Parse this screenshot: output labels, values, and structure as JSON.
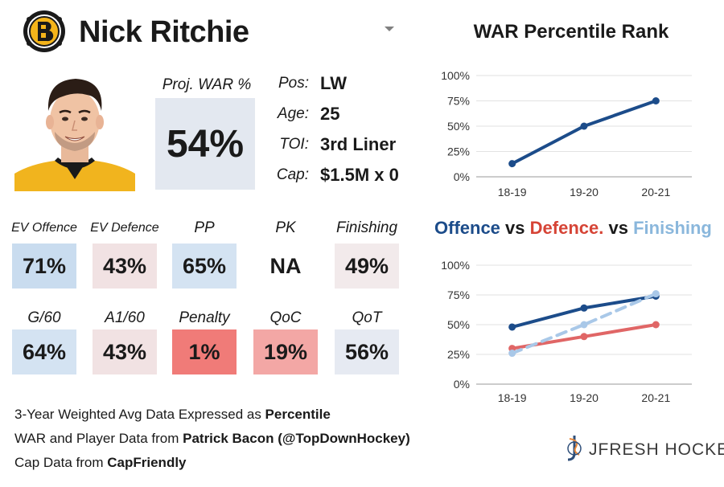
{
  "header": {
    "player_name": "Nick Ritchie",
    "team_logo_icon": "bruins-logo-icon",
    "dropdown_icon": "chevron-down-icon"
  },
  "projected_war": {
    "label": "Proj. WAR %",
    "value": "54%"
  },
  "bio": [
    {
      "label": "Pos:",
      "value": "LW"
    },
    {
      "label": "Age:",
      "value": "25"
    },
    {
      "label": "TOI:",
      "value": "3rd Liner"
    },
    {
      "label": "Cap:",
      "value": "$1.5M x 0"
    }
  ],
  "stats_row1": [
    {
      "label": "EV Offence",
      "value": "71%",
      "color": "#c9dcef"
    },
    {
      "label": "EV Defence",
      "value": "43%",
      "color": "#f1e2e3"
    },
    {
      "label": "PP",
      "value": "65%",
      "color": "#d4e3f2"
    },
    {
      "label": "PK",
      "value": "NA",
      "color": "#ffffff"
    },
    {
      "label": "Finishing",
      "value": "49%",
      "color": "#f2eaeb"
    }
  ],
  "stats_row2": [
    {
      "label": "G/60",
      "value": "64%",
      "color": "#d4e3f2"
    },
    {
      "label": "A1/60",
      "value": "43%",
      "color": "#f1e2e3"
    },
    {
      "label": "Penalty",
      "value": "1%",
      "color": "#f07b78"
    },
    {
      "label": "QoC",
      "value": "19%",
      "color": "#f3a7a5"
    },
    {
      "label": "QoT",
      "value": "56%",
      "color": "#e6eaf2"
    }
  ],
  "chart_data": [
    {
      "type": "line",
      "title": "WAR Percentile Rank",
      "categories": [
        "18-19",
        "19-20",
        "20-21"
      ],
      "ylim": [
        0,
        100
      ],
      "yticks": [
        "0%",
        "25%",
        "50%",
        "75%",
        "100%"
      ],
      "series": [
        {
          "name": "WAR",
          "values": [
            13,
            50,
            75
          ],
          "color": "#1c4c8a"
        }
      ]
    },
    {
      "type": "line",
      "title": "Offence vs Defence. vs Finishing",
      "title_parts": {
        "offence": "Offence",
        "vs1": "vs",
        "defence": "Defence.",
        "vs2": "vs",
        "finishing": "Finishing"
      },
      "categories": [
        "18-19",
        "19-20",
        "20-21"
      ],
      "ylim": [
        0,
        100
      ],
      "yticks": [
        "0%",
        "25%",
        "50%",
        "75%",
        "100%"
      ],
      "series": [
        {
          "name": "Offence",
          "values": [
            48,
            64,
            74
          ],
          "color": "#1c4c8a",
          "dashed": false
        },
        {
          "name": "Defence",
          "values": [
            30,
            40,
            50
          ],
          "color": "#e06666",
          "dashed": false
        },
        {
          "name": "Finishing",
          "values": [
            26,
            50,
            76
          ],
          "color": "#a9c8e8",
          "dashed": true
        }
      ]
    }
  ],
  "footer": {
    "line1_prefix": "3-Year Weighted Avg Data Expressed as ",
    "line1_bold": "Percentile",
    "line2_prefix": "WAR and Player Data from ",
    "line2_bold": "Patrick Bacon (@TopDownHockey)",
    "line3_prefix": "Cap Data from ",
    "line3_bold": "CapFriendly"
  },
  "brand": {
    "name": "JFRESH HOCKEY",
    "icon": "jfresh-logo-icon"
  }
}
